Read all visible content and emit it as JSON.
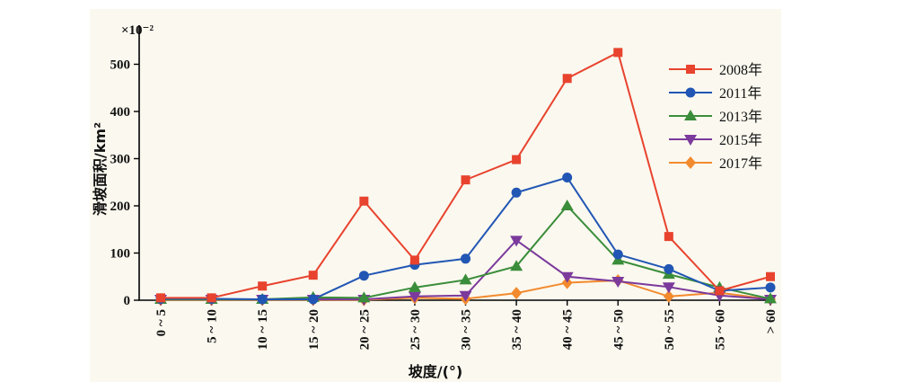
{
  "chart_data": {
    "type": "line",
    "multiplier_label": "×10⁻²",
    "xlabel": "坡度/(°)",
    "ylabel": "滑坡面积/km²",
    "ylim": [
      0,
      560
    ],
    "yticks": [
      0,
      100,
      200,
      300,
      400,
      500
    ],
    "grid": false,
    "legend_position": "top-right",
    "categories": [
      "0 ~ 5",
      "5 ~ 10",
      "10 ~ 15",
      "15 ~ 20",
      "20 ~ 25",
      "25 ~ 30",
      "30 ~ 35",
      "35 ~ 40",
      "40 ~ 45",
      "45 ~ 50",
      "50 ~ 55",
      "55 ~ 60",
      "> 60"
    ],
    "series": [
      {
        "name": "2008年",
        "color": "#e8432e",
        "marker": "square",
        "values": [
          5,
          5,
          30,
          53,
          210,
          85,
          255,
          298,
          470,
          525,
          135,
          20,
          50
        ]
      },
      {
        "name": "2011年",
        "color": "#2156b4",
        "marker": "circle",
        "values": [
          3,
          3,
          2,
          2,
          52,
          75,
          88,
          228,
          260,
          97,
          66,
          20,
          27
        ]
      },
      {
        "name": "2013年",
        "color": "#3a8d3a",
        "marker": "triangle-up",
        "values": [
          2,
          2,
          2,
          6,
          5,
          27,
          43,
          72,
          200,
          85,
          55,
          27,
          3
        ]
      },
      {
        "name": "2015年",
        "color": "#7b3a9c",
        "marker": "triangle-down",
        "values": [
          2,
          2,
          2,
          2,
          2,
          8,
          10,
          127,
          50,
          40,
          28,
          10,
          2
        ]
      },
      {
        "name": "2017年",
        "color": "#f28a2e",
        "marker": "diamond",
        "values": [
          1,
          1,
          1,
          1,
          1,
          5,
          3,
          15,
          37,
          42,
          8,
          16,
          2
        ]
      }
    ]
  }
}
